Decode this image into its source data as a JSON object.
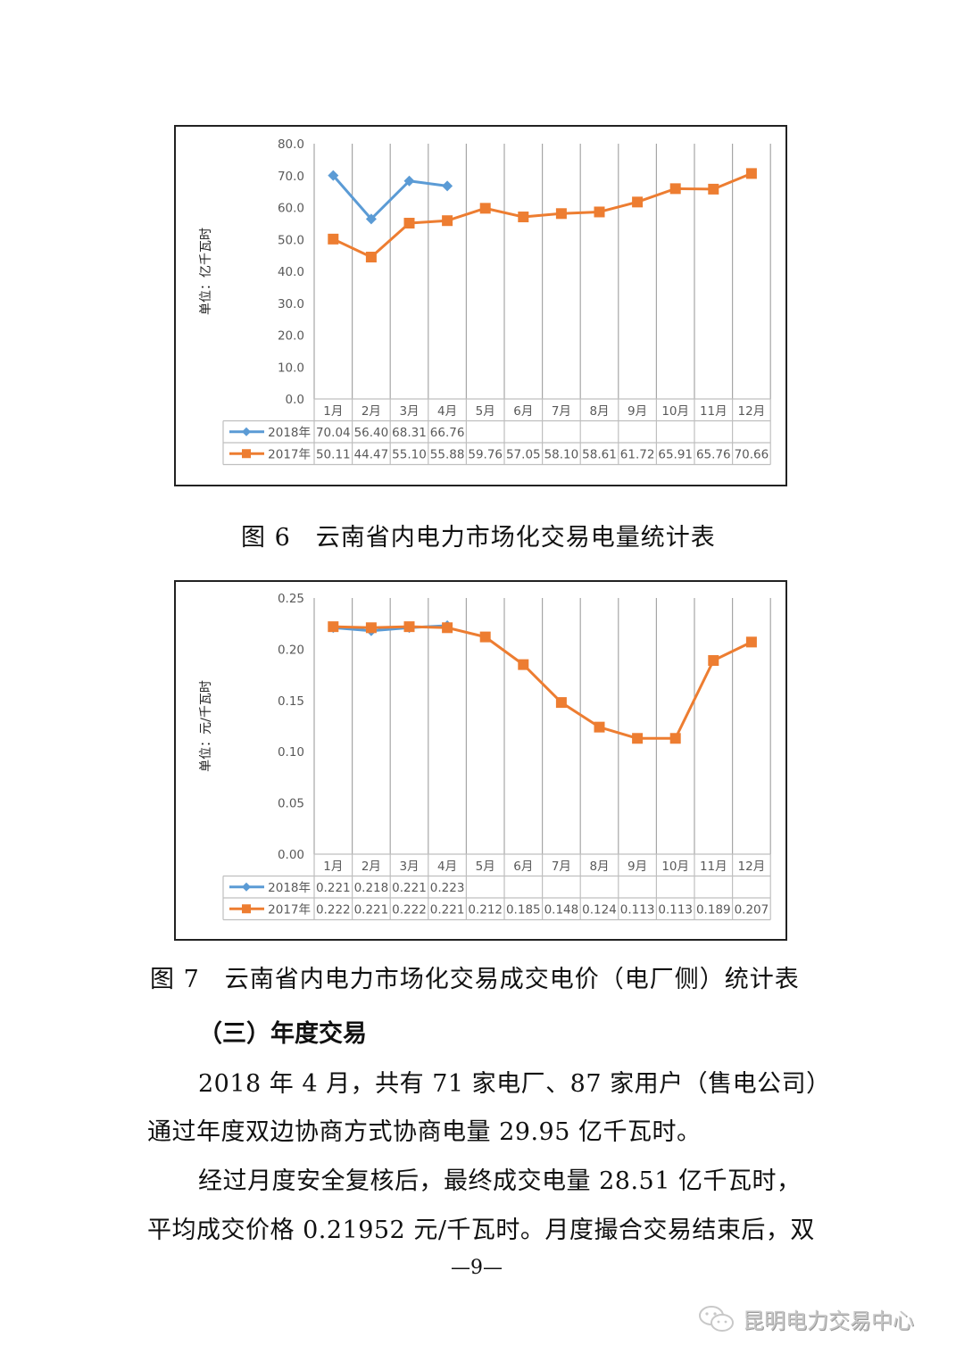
{
  "page": {
    "page_number": "—9—",
    "watermark": "昆明电力交易中心",
    "watermark_icon": "wechat-icon"
  },
  "colors": {
    "series_2018": "#5b9bd5",
    "series_2017": "#ed7d31",
    "grid": "#a6a6a6",
    "table_border": "#bfbfbf",
    "axis_text": "#595959"
  },
  "figures": {
    "fig6": {
      "caption": "图 6　云南省内电力市场化交易电量统计表"
    },
    "fig7": {
      "caption": "图 7　云南省内电力市场化交易成交电价（电厂侧）统计表"
    }
  },
  "section": {
    "heading": "（三）年度交易",
    "paragraphs": [
      "2018 年 4 月，共有 71 家电厂、87 家用户（售电公司）",
      "通过年度双边协商方式协商电量 29.95 亿千瓦时。",
      "经过月度安全复核后，最终成交电量 28.51 亿千瓦时，",
      "平均成交价格 0.21952 元/千瓦时。月度撮合交易结束后，双"
    ]
  },
  "chart_data": [
    {
      "type": "line",
      "title": "图 6　云南省内电力市场化交易电量统计表",
      "xlabel": "",
      "ylabel": "单位：亿千瓦时",
      "categories": [
        "1月",
        "2月",
        "3月",
        "4月",
        "5月",
        "6月",
        "7月",
        "8月",
        "9月",
        "10月",
        "11月",
        "12月"
      ],
      "series": [
        {
          "name": "2018年",
          "marker": "diamond",
          "values": [
            70.04,
            56.4,
            68.31,
            66.76,
            null,
            null,
            null,
            null,
            null,
            null,
            null,
            null
          ],
          "labels": [
            "70.04",
            "56.40",
            "68.31",
            "66.76",
            "",
            "",
            "",
            "",
            "",
            "",
            "",
            ""
          ]
        },
        {
          "name": "2017年",
          "marker": "square",
          "values": [
            50.11,
            44.47,
            55.1,
            55.88,
            59.76,
            57.05,
            58.1,
            58.61,
            61.72,
            65.91,
            65.76,
            70.66
          ],
          "labels": [
            "50.11",
            "44.47",
            "55.10",
            "55.88",
            "59.76",
            "57.05",
            "58.10",
            "58.61",
            "61.72",
            "65.91",
            "65.76",
            "70.66"
          ]
        }
      ],
      "ylim": [
        0,
        80
      ],
      "yticks": [
        "0.0",
        "10.0",
        "20.0",
        "30.0",
        "40.0",
        "50.0",
        "60.0",
        "70.0",
        "80.0"
      ],
      "grid": "vertical",
      "legend": "data-table-below"
    },
    {
      "type": "line",
      "title": "图 7　云南省内电力市场化交易成交电价（电厂侧）统计表",
      "xlabel": "",
      "ylabel": "单位：元/千瓦时",
      "categories": [
        "1月",
        "2月",
        "3月",
        "4月",
        "5月",
        "6月",
        "7月",
        "8月",
        "9月",
        "10月",
        "11月",
        "12月"
      ],
      "series": [
        {
          "name": "2018年",
          "marker": "diamond",
          "values": [
            0.221,
            0.218,
            0.221,
            0.223,
            null,
            null,
            null,
            null,
            null,
            null,
            null,
            null
          ],
          "labels": [
            "0.221",
            "0.218",
            "0.221",
            "0.223",
            "",
            "",
            "",
            "",
            "",
            "",
            "",
            ""
          ]
        },
        {
          "name": "2017年",
          "marker": "square",
          "values": [
            0.222,
            0.221,
            0.222,
            0.221,
            0.212,
            0.185,
            0.148,
            0.124,
            0.113,
            0.113,
            0.189,
            0.207
          ],
          "labels": [
            "0.222",
            "0.221",
            "0.222",
            "0.221",
            "0.212",
            "0.185",
            "0.148",
            "0.124",
            "0.113",
            "0.113",
            "0.189",
            "0.207"
          ]
        }
      ],
      "ylim": [
        0,
        0.25
      ],
      "yticks": [
        "0.00",
        "0.05",
        "0.10",
        "0.15",
        "0.20",
        "0.25"
      ],
      "grid": "vertical",
      "legend": "data-table-below"
    }
  ]
}
